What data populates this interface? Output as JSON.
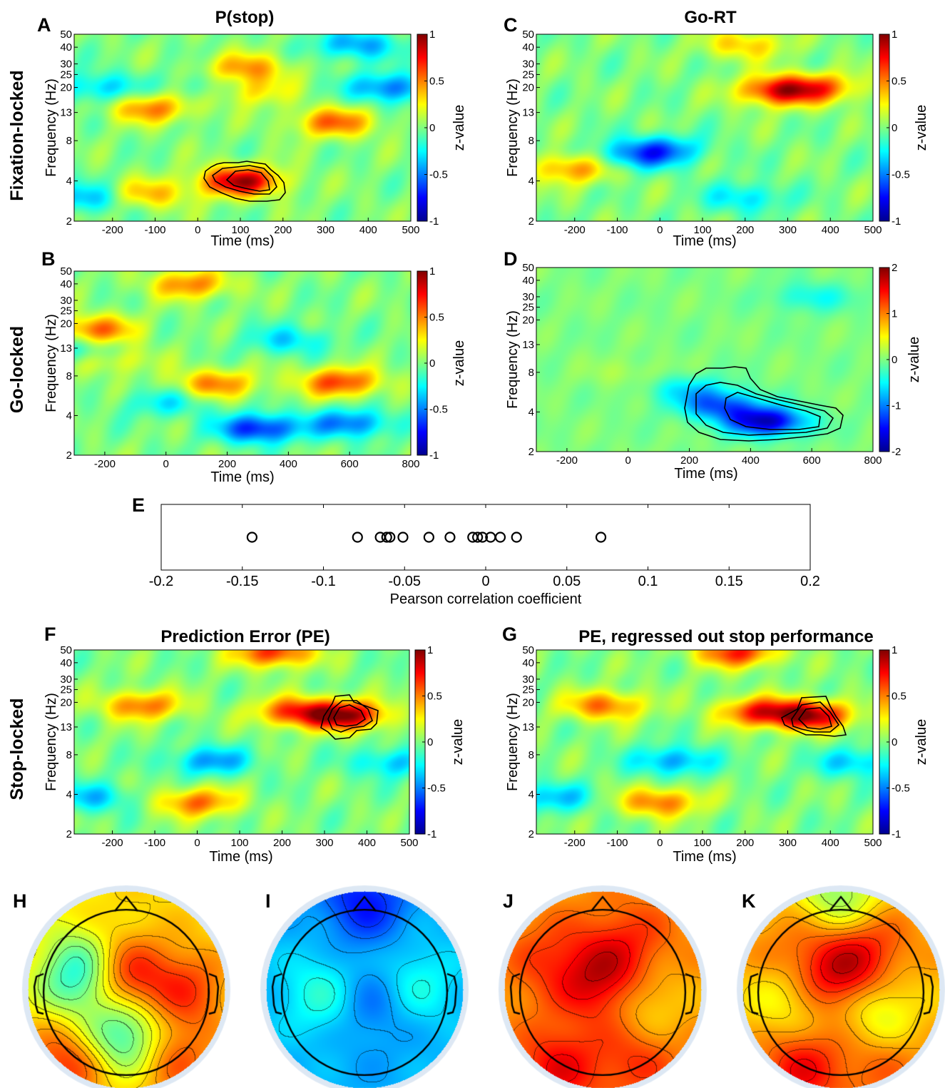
{
  "colorbar_label": "z-value",
  "axis_labels": {
    "time": "Time (ms)",
    "frequency": "Frequency (Hz)"
  },
  "row_labels": {
    "fixation": "Fixation-locked",
    "go": "Go-locked",
    "stop": "Stop-locked"
  },
  "freq_ticks": [
    "2",
    "4",
    "8",
    "13",
    "20",
    "25",
    "30",
    "40",
    "50"
  ],
  "panels": {
    "A": {
      "letter": "A",
      "title": "P(stop)",
      "x_ticks": [
        "-200",
        "-100",
        "0",
        "100",
        "200",
        "300",
        "400",
        "500"
      ],
      "cbar_ticks": [
        "1",
        "0.5",
        "0",
        "-0.5",
        "-1"
      ]
    },
    "B": {
      "letter": "B",
      "title": "",
      "x_ticks": [
        "-200",
        "0",
        "200",
        "400",
        "600",
        "800"
      ],
      "cbar_ticks": [
        "1",
        "0.5",
        "0",
        "-0.5",
        "-1"
      ]
    },
    "C": {
      "letter": "C",
      "title": "Go-RT",
      "x_ticks": [
        "-200",
        "-100",
        "0",
        "100",
        "200",
        "300",
        "400",
        "500"
      ],
      "cbar_ticks": [
        "1",
        "0.5",
        "0",
        "-0.5",
        "-1"
      ]
    },
    "D": {
      "letter": "D",
      "title": "",
      "x_ticks": [
        "-200",
        "0",
        "200",
        "400",
        "600",
        "800"
      ],
      "cbar_ticks": [
        "2",
        "1",
        "0",
        "-1",
        "-2"
      ]
    },
    "E": {
      "letter": "E"
    },
    "F": {
      "letter": "F",
      "title": "Prediction Error (PE)",
      "x_ticks": [
        "-200",
        "-100",
        "0",
        "100",
        "200",
        "300",
        "400",
        "500"
      ],
      "cbar_ticks": [
        "1",
        "0.5",
        "0",
        "-0.5",
        "-1"
      ]
    },
    "G": {
      "letter": "G",
      "title": "PE, regressed out stop performance",
      "x_ticks": [
        "-200",
        "-100",
        "0",
        "100",
        "200",
        "300",
        "400",
        "500"
      ],
      "cbar_ticks": [
        "1",
        "0.5",
        "0",
        "-0.5",
        "-1"
      ]
    },
    "H": {
      "letter": "H"
    },
    "I": {
      "letter": "I"
    },
    "J": {
      "letter": "J"
    },
    "K": {
      "letter": "K"
    }
  },
  "chart_data": [
    {
      "panel": "A",
      "type": "heatmap",
      "title": "P(stop)",
      "xlabel": "Time (ms)",
      "ylabel": "Frequency (Hz)",
      "colorbar_label": "z-value",
      "xlim": [
        -290,
        500
      ],
      "ylim": [
        2,
        50
      ],
      "y_scale": "log",
      "clim": [
        -1,
        1
      ],
      "blobs": [
        {
          "t": 100,
          "f": 4,
          "value": 1.0
        },
        {
          "t": -120,
          "f": 3.2,
          "value": 0.45
        },
        {
          "t": -110,
          "f": 14,
          "value": 0.55
        },
        {
          "t": 320,
          "f": 11,
          "value": 0.6
        },
        {
          "t": 115,
          "f": 28,
          "value": 0.5
        },
        {
          "t": 110,
          "f": 19,
          "value": 0.45
        },
        {
          "t": -230,
          "f": 20,
          "value": -0.4
        },
        {
          "t": 450,
          "f": 20,
          "value": -0.6
        },
        {
          "t": 370,
          "f": 42,
          "value": -0.5
        },
        {
          "t": -260,
          "f": 3,
          "value": -0.45
        },
        {
          "t": 40,
          "f": 20,
          "value": -0.3
        }
      ]
    },
    {
      "panel": "B",
      "type": "heatmap",
      "title": "",
      "xlabel": "Time (ms)",
      "ylabel": "Frequency (Hz)",
      "colorbar_label": "z-value",
      "xlim": [
        -300,
        800
      ],
      "ylim": [
        2,
        50
      ],
      "y_scale": "log",
      "clim": [
        -1,
        1
      ],
      "blobs": [
        {
          "t": 300,
          "f": 3.2,
          "value": -0.8
        },
        {
          "t": 600,
          "f": 3.5,
          "value": -0.6
        },
        {
          "t": -260,
          "f": 12,
          "value": -0.5
        },
        {
          "t": 400,
          "f": 15,
          "value": -0.35
        },
        {
          "t": -230,
          "f": 18,
          "value": 0.6
        },
        {
          "t": -200,
          "f": 11,
          "value": 0.5
        },
        {
          "t": 160,
          "f": 7,
          "value": 0.55
        },
        {
          "t": 570,
          "f": 7.2,
          "value": 0.7
        },
        {
          "t": 80,
          "f": 40,
          "value": 0.55
        },
        {
          "t": 0,
          "f": 5,
          "value": -0.3
        }
      ]
    },
    {
      "panel": "C",
      "type": "heatmap",
      "title": "Go-RT",
      "xlabel": "Time (ms)",
      "ylabel": "Frequency (Hz)",
      "colorbar_label": "z-value",
      "xlim": [
        -290,
        500
      ],
      "ylim": [
        2,
        50
      ],
      "y_scale": "log",
      "clim": [
        -1,
        1
      ],
      "blobs": [
        {
          "t": 280,
          "f": 19,
          "value": 0.85
        },
        {
          "t": 380,
          "f": 20,
          "value": 0.5
        },
        {
          "t": -200,
          "f": 5,
          "value": 0.55
        },
        {
          "t": 0,
          "f": 6.8,
          "value": -0.6
        },
        {
          "t": -80,
          "f": 6,
          "value": -0.35
        },
        {
          "t": 200,
          "f": 3,
          "value": -0.35
        },
        {
          "t": 200,
          "f": 42,
          "value": 0.4
        }
      ]
    },
    {
      "panel": "D",
      "type": "heatmap",
      "title": "",
      "xlabel": "Time (ms)",
      "ylabel": "Frequency (Hz)",
      "colorbar_label": "z-value",
      "xlim": [
        -300,
        800
      ],
      "ylim": [
        2,
        50
      ],
      "y_scale": "log",
      "clim": [
        -2,
        2
      ],
      "blobs": [
        {
          "t": 450,
          "f": 3.4,
          "value": -1.9
        },
        {
          "t": 300,
          "f": 4.5,
          "value": -1.2
        },
        {
          "t": 200,
          "f": 6,
          "value": -0.6
        },
        {
          "t": 600,
          "f": 30,
          "value": -0.5
        },
        {
          "t": 0,
          "f": 8,
          "value": 0.2
        }
      ]
    },
    {
      "panel": "E",
      "type": "scatter",
      "xlabel": "Pearson correlation coefficient",
      "xlim": [
        -0.2,
        0.2
      ],
      "x_ticks": [
        "-0.2",
        "-0.15",
        "-0.1",
        "-0.05",
        "0",
        "0.05",
        "0.1",
        "0.15",
        "0.2"
      ],
      "x": [
        -0.144,
        -0.079,
        -0.065,
        -0.061,
        -0.059,
        -0.051,
        -0.035,
        -0.022,
        -0.008,
        -0.005,
        -0.002,
        0.003,
        0.009,
        0.019,
        0.071
      ]
    },
    {
      "panel": "F",
      "type": "heatmap",
      "title": "Prediction Error (PE)",
      "xlabel": "Time (ms)",
      "ylabel": "Frequency (Hz)",
      "colorbar_label": "z-value",
      "xlim": [
        -290,
        500
      ],
      "ylim": [
        2,
        50
      ],
      "y_scale": "log",
      "clim": [
        -1,
        1
      ],
      "blobs": [
        {
          "t": 350,
          "f": 16,
          "value": 1.0
        },
        {
          "t": 230,
          "f": 17,
          "value": 0.7
        },
        {
          "t": 0,
          "f": 3.5,
          "value": 0.6
        },
        {
          "t": -130,
          "f": 19,
          "value": 0.6
        },
        {
          "t": 180,
          "f": 48,
          "value": 0.75
        },
        {
          "t": 30,
          "f": 7.2,
          "value": -0.5
        },
        {
          "t": 460,
          "f": 7,
          "value": -0.4
        },
        {
          "t": -250,
          "f": 3.8,
          "value": -0.4
        }
      ]
    },
    {
      "panel": "G",
      "type": "heatmap",
      "title": "PE, regressed out stop performance",
      "xlabel": "Time (ms)",
      "ylabel": "Frequency (Hz)",
      "colorbar_label": "z-value",
      "xlim": [
        -290,
        500
      ],
      "ylim": [
        2,
        50
      ],
      "y_scale": "log",
      "clim": [
        -1,
        1
      ],
      "blobs": [
        {
          "t": 350,
          "f": 16,
          "value": 1.0
        },
        {
          "t": 230,
          "f": 17,
          "value": 0.7
        },
        {
          "t": 0,
          "f": 3.5,
          "value": 0.6
        },
        {
          "t": -130,
          "f": 19,
          "value": 0.6
        },
        {
          "t": 180,
          "f": 48,
          "value": 0.75
        },
        {
          "t": 30,
          "f": 7.2,
          "value": -0.5
        },
        {
          "t": 460,
          "f": 7,
          "value": -0.4
        },
        {
          "t": -250,
          "f": 3.8,
          "value": -0.4
        }
      ]
    },
    {
      "panel": "H",
      "type": "heatmap",
      "subtype": "scalp-topography",
      "base_value": 0.35,
      "spots": [
        {
          "x": -0.05,
          "y": -0.1,
          "value": 0.95
        },
        {
          "x": -0.45,
          "y": -0.15,
          "value": -0.35
        },
        {
          "x": 0.0,
          "y": 0.45,
          "value": -0.3
        },
        {
          "x": 0.6,
          "y": 0.0,
          "value": 0.7
        },
        {
          "x": -0.6,
          "y": 0.75,
          "value": 0.75
        },
        {
          "x": 0.45,
          "y": 0.7,
          "value": 0.7
        }
      ]
    },
    {
      "panel": "I",
      "type": "heatmap",
      "subtype": "scalp-topography",
      "base_value": -0.45,
      "spots": [
        {
          "x": 0.05,
          "y": 0.1,
          "value": -0.7
        },
        {
          "x": -0.4,
          "y": 0.05,
          "value": -0.15
        },
        {
          "x": 0.5,
          "y": -0.05,
          "value": -0.2
        },
        {
          "x": 0.0,
          "y": -0.9,
          "value": -0.8
        }
      ]
    },
    {
      "panel": "J",
      "type": "heatmap",
      "subtype": "scalp-topography",
      "base_value": 0.5,
      "spots": [
        {
          "x": 0.0,
          "y": -0.1,
          "value": 0.95
        },
        {
          "x": -0.55,
          "y": -0.3,
          "value": 0.7
        },
        {
          "x": 0.3,
          "y": -0.5,
          "value": 0.7
        },
        {
          "x": 0.4,
          "y": 0.15,
          "value": 0.25
        },
        {
          "x": -0.45,
          "y": 0.8,
          "value": 0.85
        },
        {
          "x": 0.35,
          "y": 0.7,
          "value": 0.75
        }
      ]
    },
    {
      "panel": "K",
      "type": "heatmap",
      "subtype": "scalp-topography",
      "base_value": 0.45,
      "spots": [
        {
          "x": 0.0,
          "y": -0.15,
          "value": 0.95
        },
        {
          "x": -0.5,
          "y": -0.35,
          "value": 0.6
        },
        {
          "x": 0.3,
          "y": -0.45,
          "value": 0.7
        },
        {
          "x": 0.35,
          "y": 0.2,
          "value": 0.1
        },
        {
          "x": -0.55,
          "y": 0.1,
          "value": 0.2
        },
        {
          "x": -0.4,
          "y": 0.8,
          "value": 0.85
        },
        {
          "x": 0.4,
          "y": 0.75,
          "value": 0.65
        },
        {
          "x": 0.0,
          "y": -0.95,
          "value": 0.0
        }
      ]
    }
  ]
}
